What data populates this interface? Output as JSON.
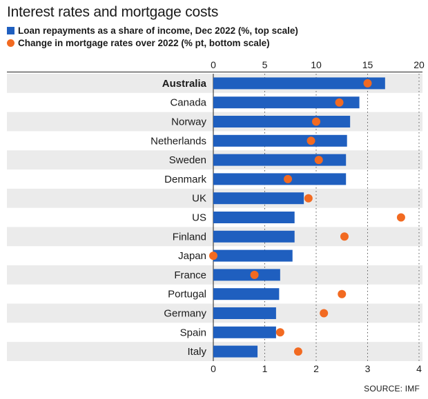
{
  "title": "Interest rates and mortgage costs",
  "legend": [
    {
      "label": "Loan repayments as a share of income, Dec 2022 (%, top scale)",
      "color": "#1f5fbf",
      "shape": "square"
    },
    {
      "label": "Change in mortgage rates over 2022 (% pt, bottom scale)",
      "color": "#f26a21",
      "shape": "dot"
    }
  ],
  "source": "SOURCE: IMF",
  "chart_data": {
    "type": "bar",
    "categories": [
      "Australia",
      "Canada",
      "Norway",
      "Netherlands",
      "Sweden",
      "Denmark",
      "UK",
      "US",
      "Finland",
      "Japan",
      "France",
      "Portugal",
      "Germany",
      "Spain",
      "Italy"
    ],
    "highlight_category": "Australia",
    "series": [
      {
        "name": "Loan repayments as a share of income, Dec 2022 (%, top scale)",
        "type": "bar",
        "axis": "top",
        "color": "#1f5fbf",
        "values": [
          16.7,
          14.2,
          13.3,
          13.0,
          12.9,
          12.9,
          8.8,
          7.9,
          7.9,
          7.7,
          6.5,
          6.4,
          6.1,
          6.1,
          4.3
        ]
      },
      {
        "name": "Change in mortgage rates over 2022 (% pt, bottom scale)",
        "type": "dot",
        "axis": "bottom",
        "color": "#f26a21",
        "values": [
          3.0,
          2.45,
          2.0,
          1.9,
          2.05,
          1.45,
          1.85,
          3.65,
          2.55,
          0.0,
          0.8,
          2.5,
          2.15,
          1.3,
          1.65
        ]
      }
    ],
    "top_axis": {
      "ticks": [
        "0",
        "5",
        "10",
        "15",
        "20"
      ],
      "range": [
        0,
        20
      ]
    },
    "bottom_axis": {
      "ticks": [
        "0",
        "1",
        "2",
        "3",
        "4"
      ],
      "range": [
        0,
        4
      ]
    },
    "grid": "dotted vertical",
    "row_shading": "alternating"
  }
}
